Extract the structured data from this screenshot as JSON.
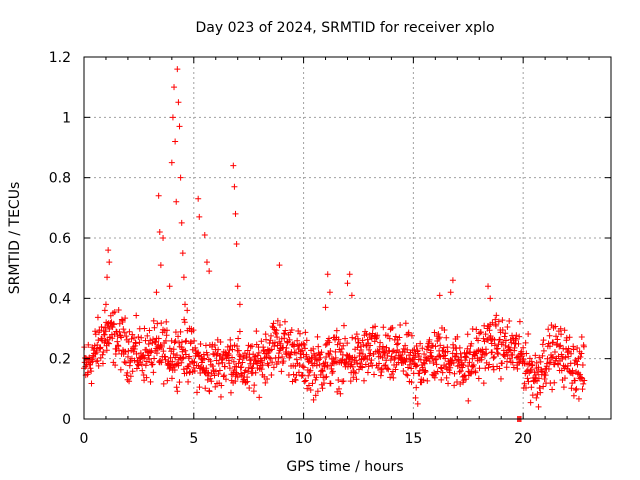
{
  "chart_data": {
    "type": "scatter",
    "title": "Day 023 of 2024, SRMTID for receiver xplo",
    "xlabel": "GPS time / hours",
    "ylabel": "SRMTID / TECUs",
    "xlim": [
      0,
      24
    ],
    "ylim": [
      0,
      1.2
    ],
    "x_ticks": [
      0,
      5,
      10,
      15,
      20
    ],
    "x_tick_labels": [
      "0",
      "5",
      "10",
      "15",
      "20"
    ],
    "y_ticks": [
      0,
      0.2,
      0.4,
      0.6,
      0.8,
      1.0,
      1.2
    ],
    "y_tick_labels": [
      "0",
      "0.2",
      "0.4",
      "0.6",
      "0.8",
      "1",
      "1.2"
    ],
    "grid": true,
    "marker": "plus",
    "series_color": "#ff0000",
    "x_data_end": 22.8,
    "baseline": [
      [
        0.0,
        0.16
      ],
      [
        0.5,
        0.22
      ],
      [
        1.0,
        0.28
      ],
      [
        1.5,
        0.27
      ],
      [
        2.0,
        0.23
      ],
      [
        2.5,
        0.22
      ],
      [
        3.0,
        0.21
      ],
      [
        3.5,
        0.23
      ],
      [
        4.0,
        0.21
      ],
      [
        4.5,
        0.23
      ],
      [
        5.0,
        0.2
      ],
      [
        5.5,
        0.17
      ],
      [
        6.0,
        0.18
      ],
      [
        6.5,
        0.2
      ],
      [
        7.0,
        0.19
      ],
      [
        7.5,
        0.16
      ],
      [
        8.0,
        0.19
      ],
      [
        8.5,
        0.24
      ],
      [
        9.0,
        0.25
      ],
      [
        9.5,
        0.22
      ],
      [
        10.0,
        0.19
      ],
      [
        10.5,
        0.17
      ],
      [
        11.0,
        0.19
      ],
      [
        11.5,
        0.2
      ],
      [
        12.0,
        0.19
      ],
      [
        12.5,
        0.2
      ],
      [
        13.0,
        0.22
      ],
      [
        13.5,
        0.21
      ],
      [
        14.0,
        0.2
      ],
      [
        14.5,
        0.22
      ],
      [
        15.0,
        0.17
      ],
      [
        15.5,
        0.2
      ],
      [
        16.0,
        0.21
      ],
      [
        16.5,
        0.21
      ],
      [
        17.0,
        0.19
      ],
      [
        17.5,
        0.19
      ],
      [
        18.0,
        0.22
      ],
      [
        18.5,
        0.25
      ],
      [
        19.0,
        0.24
      ],
      [
        19.5,
        0.23
      ],
      [
        20.0,
        0.2
      ],
      [
        20.5,
        0.14
      ],
      [
        21.0,
        0.2
      ],
      [
        21.5,
        0.22
      ],
      [
        22.0,
        0.2
      ],
      [
        22.5,
        0.16
      ],
      [
        22.8,
        0.16
      ]
    ],
    "notable_points": [
      [
        3.4,
        0.74
      ],
      [
        3.45,
        0.62
      ],
      [
        3.5,
        0.51
      ],
      [
        3.6,
        0.6
      ],
      [
        4.0,
        0.85
      ],
      [
        4.05,
        1.0
      ],
      [
        4.1,
        1.1
      ],
      [
        4.15,
        0.92
      ],
      [
        4.2,
        0.72
      ],
      [
        4.25,
        1.16
      ],
      [
        4.3,
        1.05
      ],
      [
        4.35,
        0.97
      ],
      [
        4.4,
        0.8
      ],
      [
        4.45,
        0.65
      ],
      [
        4.5,
        0.55
      ],
      [
        4.55,
        0.47
      ],
      [
        4.6,
        0.38
      ],
      [
        3.3,
        0.42
      ],
      [
        3.9,
        0.44
      ],
      [
        4.7,
        0.36
      ],
      [
        4.8,
        0.3
      ],
      [
        5.2,
        0.73
      ],
      [
        5.25,
        0.67
      ],
      [
        5.5,
        0.61
      ],
      [
        5.6,
        0.52
      ],
      [
        5.7,
        0.49
      ],
      [
        6.8,
        0.84
      ],
      [
        6.85,
        0.77
      ],
      [
        6.9,
        0.68
      ],
      [
        6.95,
        0.58
      ],
      [
        7.0,
        0.44
      ],
      [
        7.1,
        0.38
      ],
      [
        1.1,
        0.56
      ],
      [
        1.15,
        0.52
      ],
      [
        1.05,
        0.47
      ],
      [
        1.0,
        0.38
      ],
      [
        0.95,
        0.36
      ],
      [
        8.9,
        0.51
      ],
      [
        11.1,
        0.48
      ],
      [
        11.2,
        0.42
      ],
      [
        11.0,
        0.37
      ],
      [
        12.1,
        0.48
      ],
      [
        12.0,
        0.45
      ],
      [
        12.2,
        0.41
      ],
      [
        16.8,
        0.46
      ],
      [
        16.7,
        0.42
      ],
      [
        18.4,
        0.44
      ],
      [
        18.5,
        0.4
      ],
      [
        16.2,
        0.41
      ],
      [
        15.1,
        0.07
      ],
      [
        15.2,
        0.05
      ],
      [
        17.5,
        0.06
      ],
      [
        20.7,
        0.04
      ],
      [
        20.6,
        0.07
      ],
      [
        19.8,
        0.0
      ],
      [
        19.85,
        0.0
      ],
      [
        19.9,
        0.0
      ],
      [
        19.75,
        0.0
      ]
    ]
  }
}
